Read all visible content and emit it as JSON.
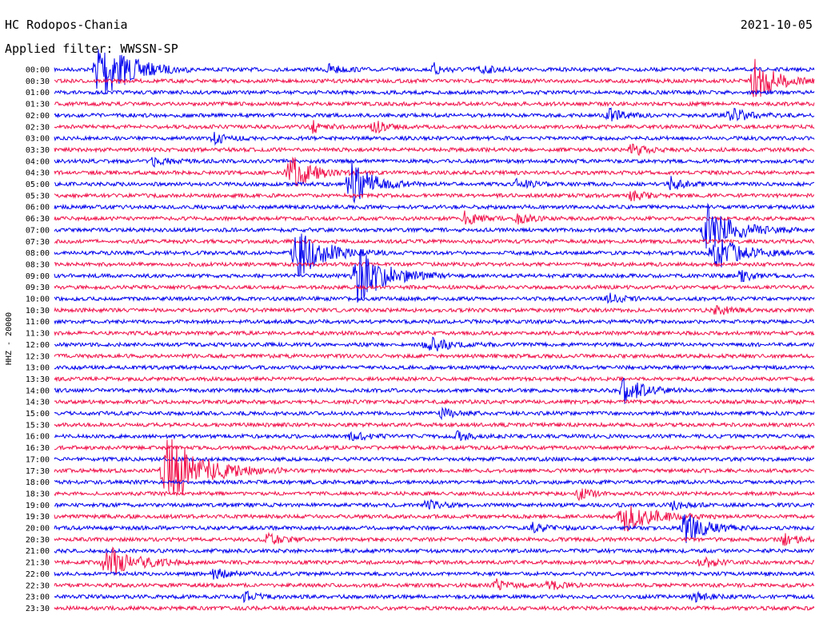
{
  "station": "HC Rodopos-Chania",
  "date": "2021-10-05",
  "filter_label": "Applied filter: WWSSN-SP",
  "channel_label": "HHZ - 20000",
  "colors": {
    "odd": "#0000ee",
    "even": "#f0104a",
    "text": "#000000"
  },
  "chart_data": {
    "type": "line",
    "title": "HC Rodopos-Chania",
    "subtitle": "Applied filter: WWSSN-SP",
    "ylabel": "HHZ - 20000",
    "xlabel": "",
    "row_labels": [
      "00:00",
      "00:30",
      "01:00",
      "01:30",
      "02:00",
      "02:30",
      "03:00",
      "03:30",
      "04:00",
      "04:30",
      "05:00",
      "05:30",
      "06:00",
      "06:30",
      "07:00",
      "07:30",
      "08:00",
      "08:30",
      "09:00",
      "09:30",
      "10:00",
      "10:30",
      "11:00",
      "11:30",
      "12:00",
      "12:30",
      "13:00",
      "13:30",
      "14:00",
      "14:30",
      "15:00",
      "15:30",
      "16:00",
      "16:30",
      "17:00",
      "17:30",
      "18:00",
      "18:30",
      "19:00",
      "19:30",
      "20:00",
      "20:30",
      "21:00",
      "21:30",
      "22:00",
      "22:30",
      "23:00",
      "23:30"
    ],
    "events": [
      {
        "row": 0,
        "t": 0.06,
        "amp": 9,
        "dur": 0.04
      },
      {
        "row": 0,
        "t": 0.36,
        "amp": 1.3,
        "dur": 0.02
      },
      {
        "row": 0,
        "t": 0.5,
        "amp": 1.4,
        "dur": 0.02
      },
      {
        "row": 0,
        "t": 0.56,
        "amp": 1.2,
        "dur": 0.02
      },
      {
        "row": 1,
        "t": 0.92,
        "amp": 6,
        "dur": 0.03
      },
      {
        "row": 4,
        "t": 0.73,
        "amp": 1.6,
        "dur": 0.02
      },
      {
        "row": 4,
        "t": 0.89,
        "amp": 1.6,
        "dur": 0.03
      },
      {
        "row": 5,
        "t": 0.34,
        "amp": 1.4,
        "dur": 0.02
      },
      {
        "row": 5,
        "t": 0.42,
        "amp": 1.6,
        "dur": 0.02
      },
      {
        "row": 6,
        "t": 0.21,
        "amp": 1.4,
        "dur": 0.02
      },
      {
        "row": 7,
        "t": 0.76,
        "amp": 1.6,
        "dur": 0.02
      },
      {
        "row": 8,
        "t": 0.13,
        "amp": 1.5,
        "dur": 0.02
      },
      {
        "row": 9,
        "t": 0.31,
        "amp": 5,
        "dur": 0.03
      },
      {
        "row": 10,
        "t": 0.39,
        "amp": 6,
        "dur": 0.03
      },
      {
        "row": 10,
        "t": 0.61,
        "amp": 1.6,
        "dur": 0.02
      },
      {
        "row": 10,
        "t": 0.81,
        "amp": 1.8,
        "dur": 0.02
      },
      {
        "row": 11,
        "t": 0.76,
        "amp": 1.3,
        "dur": 0.02
      },
      {
        "row": 13,
        "t": 0.54,
        "amp": 1.6,
        "dur": 0.02
      },
      {
        "row": 13,
        "t": 0.61,
        "amp": 1.3,
        "dur": 0.02
      },
      {
        "row": 14,
        "t": 0.86,
        "amp": 6,
        "dur": 0.04
      },
      {
        "row": 16,
        "t": 0.32,
        "amp": 6,
        "dur": 0.04
      },
      {
        "row": 16,
        "t": 0.87,
        "amp": 4,
        "dur": 0.04
      },
      {
        "row": 18,
        "t": 0.4,
        "amp": 7,
        "dur": 0.04
      },
      {
        "row": 18,
        "t": 0.9,
        "amp": 1.6,
        "dur": 0.02
      },
      {
        "row": 20,
        "t": 0.73,
        "amp": 1.3,
        "dur": 0.02
      },
      {
        "row": 21,
        "t": 0.87,
        "amp": 1.4,
        "dur": 0.02
      },
      {
        "row": 24,
        "t": 0.49,
        "amp": 2.2,
        "dur": 0.03
      },
      {
        "row": 28,
        "t": 0.75,
        "amp": 3,
        "dur": 0.03
      },
      {
        "row": 30,
        "t": 0.51,
        "amp": 1.2,
        "dur": 0.02
      },
      {
        "row": 32,
        "t": 0.39,
        "amp": 1.2,
        "dur": 0.02
      },
      {
        "row": 32,
        "t": 0.53,
        "amp": 1.1,
        "dur": 0.02
      },
      {
        "row": 35,
        "t": 0.15,
        "amp": 9,
        "dur": 0.05
      },
      {
        "row": 37,
        "t": 0.69,
        "amp": 1.3,
        "dur": 0.02
      },
      {
        "row": 38,
        "t": 0.49,
        "amp": 1.2,
        "dur": 0.02
      },
      {
        "row": 38,
        "t": 0.81,
        "amp": 1.2,
        "dur": 0.02
      },
      {
        "row": 39,
        "t": 0.75,
        "amp": 4,
        "dur": 0.04
      },
      {
        "row": 40,
        "t": 0.63,
        "amp": 1.2,
        "dur": 0.02
      },
      {
        "row": 40,
        "t": 0.83,
        "amp": 4,
        "dur": 0.03
      },
      {
        "row": 41,
        "t": 0.28,
        "amp": 1.4,
        "dur": 0.02
      },
      {
        "row": 41,
        "t": 0.96,
        "amp": 1.4,
        "dur": 0.02
      },
      {
        "row": 43,
        "t": 0.07,
        "amp": 4,
        "dur": 0.04
      },
      {
        "row": 43,
        "t": 0.85,
        "amp": 1.6,
        "dur": 0.02
      },
      {
        "row": 44,
        "t": 0.21,
        "amp": 1.4,
        "dur": 0.02
      },
      {
        "row": 45,
        "t": 0.58,
        "amp": 1.4,
        "dur": 0.02
      },
      {
        "row": 45,
        "t": 0.65,
        "amp": 1.2,
        "dur": 0.02
      },
      {
        "row": 46,
        "t": 0.25,
        "amp": 1.3,
        "dur": 0.02
      },
      {
        "row": 46,
        "t": 0.84,
        "amp": 1.3,
        "dur": 0.02
      }
    ]
  }
}
